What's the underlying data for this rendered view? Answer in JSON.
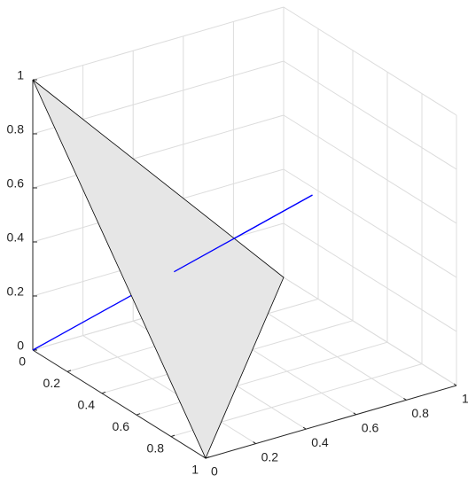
{
  "chart_data": {
    "type": "3d",
    "xlim": [
      0,
      1
    ],
    "ylim": [
      0,
      1
    ],
    "zlim": [
      0,
      1
    ],
    "xticks": [
      0,
      0.2,
      0.4,
      0.6,
      0.8,
      1
    ],
    "yticks": [
      0,
      0.2,
      0.4,
      0.6,
      0.8,
      1
    ],
    "zticks": [
      0,
      0.2,
      0.4,
      0.6,
      0.8,
      1
    ],
    "grid": true,
    "surfaces": [
      {
        "x": [
          1,
          0,
          0
        ],
        "y": [
          0,
          1,
          0
        ],
        "z": [
          0,
          0,
          1
        ],
        "color": "#e6e6e6"
      }
    ],
    "lines": [
      {
        "x": [
          0,
          0.66
        ],
        "y": [
          0,
          0.66
        ],
        "z": [
          0,
          0.66
        ],
        "color": "#0000ff"
      }
    ]
  }
}
